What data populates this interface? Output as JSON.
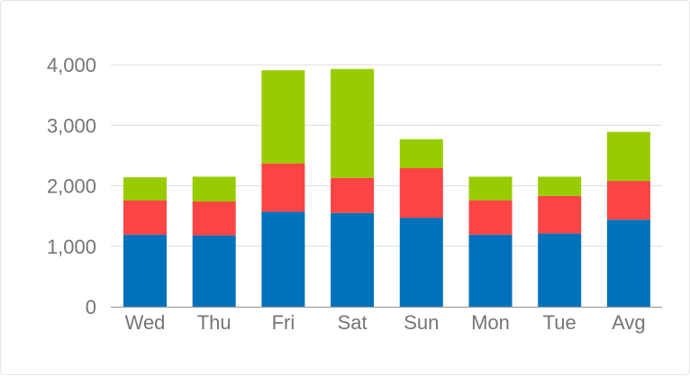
{
  "chart_data": {
    "type": "bar",
    "stacked": true,
    "categories": [
      "Wed",
      "Thu",
      "Fri",
      "Sat",
      "Sun",
      "Mon",
      "Tue",
      "Avg"
    ],
    "series": [
      {
        "values": [
          1190,
          1180,
          1570,
          1550,
          1470,
          1190,
          1210,
          1440
        ],
        "color": "#0071bb"
      },
      {
        "values": [
          570,
          560,
          800,
          580,
          820,
          570,
          620,
          640
        ],
        "color": "#fb4444"
      },
      {
        "values": [
          380,
          410,
          1540,
          1800,
          480,
          390,
          320,
          810
        ],
        "color": "#99cc00"
      }
    ],
    "ylim": [
      0,
      4000
    ],
    "yticks": [
      0,
      1000,
      2000,
      3000,
      4000
    ],
    "ytick_labels": [
      "0",
      "1,000",
      "2,000",
      "3,000",
      "4,000"
    ],
    "grid": true,
    "legend": "none"
  }
}
